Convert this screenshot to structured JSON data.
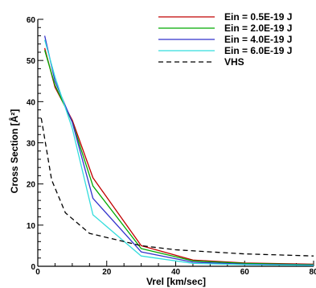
{
  "chart_data": {
    "type": "line",
    "xlabel": "Vrel [km/sec]",
    "ylabel": "Cross Section [Å²]",
    "xlim": [
      0,
      80
    ],
    "ylim": [
      0,
      60
    ],
    "xticks": [
      "0",
      "20",
      "40",
      "60",
      "80"
    ],
    "yticks": [
      "0",
      "10",
      "20",
      "30",
      "40",
      "50",
      "60"
    ],
    "grid": false,
    "legend": "top-right",
    "series": [
      {
        "name": "Ein = 0.5E-19 J",
        "color": "#c00000",
        "dash": "solid",
        "x": [
          2,
          5,
          10,
          16,
          30,
          45,
          60,
          80
        ],
        "y": [
          53,
          43.5,
          35.5,
          21.5,
          5,
          1.5,
          0.8,
          0.5
        ]
      },
      {
        "name": "Ein = 2.0E-19 J",
        "color": "#00aa00",
        "dash": "solid",
        "x": [
          2,
          5,
          10,
          16,
          30,
          45,
          60,
          80
        ],
        "y": [
          52.5,
          44,
          35,
          19.5,
          4.3,
          1.3,
          0.7,
          0.4
        ]
      },
      {
        "name": "Ein = 4.0E-19 J",
        "color": "#3333cc",
        "dash": "solid",
        "x": [
          2,
          5,
          10,
          16,
          30,
          45,
          60,
          80
        ],
        "y": [
          56,
          45,
          35,
          16.5,
          3.5,
          1.0,
          0.5,
          0.3
        ]
      },
      {
        "name": "Ein = 6.0E-19 J",
        "color": "#33dddd",
        "dash": "solid",
        "x": [
          2,
          5,
          10,
          16,
          30,
          45,
          60,
          80
        ],
        "y": [
          55,
          46,
          33.5,
          12.5,
          2.5,
          0.7,
          0.4,
          0.2
        ]
      },
      {
        "name": "VHS",
        "color": "#000000",
        "dash": "dashed",
        "x": [
          1,
          4,
          8,
          15,
          25,
          30,
          40,
          50,
          60,
          80
        ],
        "y": [
          36,
          21,
          13,
          8,
          6,
          5,
          4,
          3.5,
          3,
          2.5
        ]
      }
    ]
  }
}
